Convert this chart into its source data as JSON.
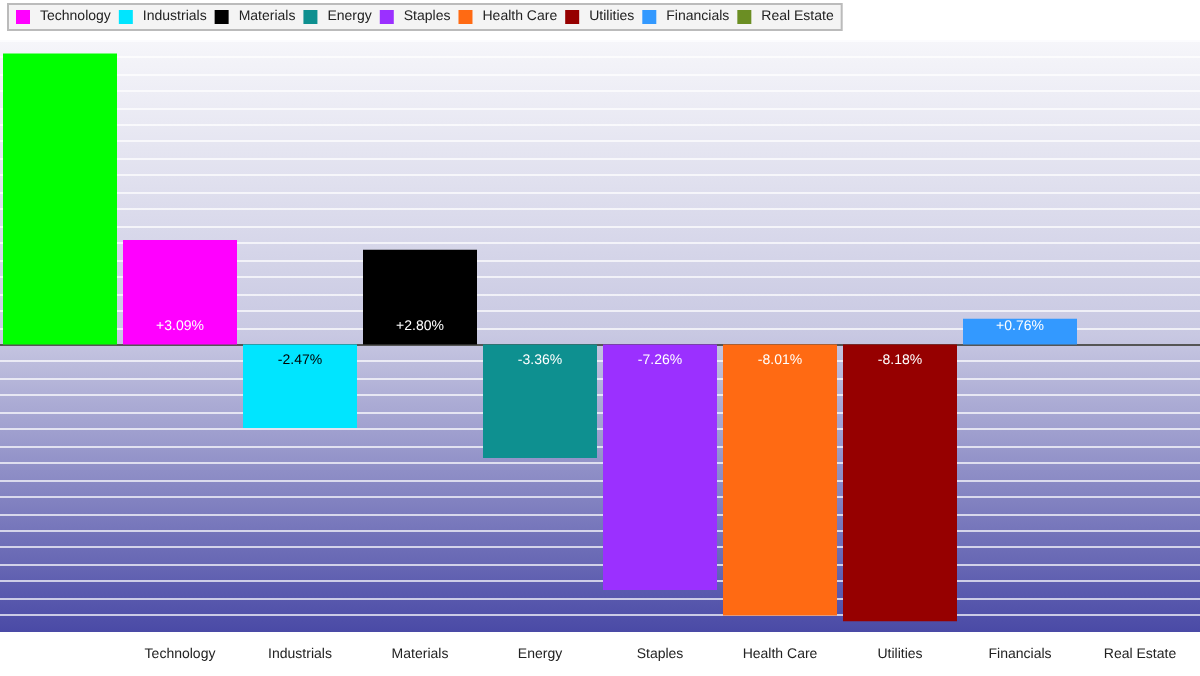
{
  "chart_data": {
    "type": "bar",
    "categories": [
      null,
      "Technology",
      "Industrials",
      "Materials",
      "Energy",
      "Staples",
      "Health Care",
      "Utilities",
      "Financials",
      "Real Estate"
    ],
    "stacked": true,
    "series": [
      {
        "color": "#00ff00",
        "values": [
          8.6,
          null,
          null,
          null,
          null,
          null,
          null,
          null,
          null,
          null
        ]
      },
      {
        "name": "Technology",
        "color": "#ff00ff",
        "values": [
          null,
          3.09,
          null,
          null,
          null,
          null,
          null,
          null,
          null,
          null
        ],
        "value_labels": [
          null,
          "+3.09%",
          null,
          null,
          null,
          null,
          null,
          null,
          null,
          null
        ]
      },
      {
        "name": "Industrials",
        "color": "#00e5ff",
        "values": [
          null,
          null,
          -2.47,
          null,
          null,
          null,
          null,
          null,
          null,
          null
        ],
        "value_labels": [
          null,
          null,
          "-2.47%",
          null,
          null,
          null,
          null,
          null,
          null,
          null
        ]
      },
      {
        "name": "Materials",
        "color": "#000000",
        "values": [
          null,
          null,
          null,
          2.8,
          null,
          null,
          null,
          null,
          null,
          null
        ],
        "value_labels": [
          null,
          null,
          null,
          "+2.80%",
          null,
          null,
          null,
          null,
          null,
          null
        ]
      },
      {
        "name": "Energy",
        "color": "#0e9090",
        "values": [
          null,
          null,
          null,
          null,
          -3.36,
          null,
          null,
          null,
          null,
          null
        ],
        "value_labels": [
          null,
          null,
          null,
          null,
          "-3.36%",
          null,
          null,
          null,
          null,
          null
        ]
      },
      {
        "name": "Staples",
        "color": "#9b30ff",
        "values": [
          null,
          null,
          null,
          null,
          null,
          -7.26,
          null,
          null,
          null,
          null
        ],
        "value_labels": [
          null,
          null,
          null,
          null,
          null,
          "-7.26%",
          null,
          null,
          null,
          null
        ]
      },
      {
        "name": "Health Care",
        "color": "#ff6a13",
        "values": [
          null,
          null,
          null,
          null,
          null,
          null,
          -8.01,
          null,
          null,
          null
        ],
        "value_labels": [
          null,
          null,
          null,
          null,
          null,
          null,
          "-8.01%",
          null,
          null,
          null
        ]
      },
      {
        "name": "Utilities",
        "color": "#960000",
        "values": [
          null,
          null,
          null,
          null,
          null,
          null,
          null,
          -8.18,
          null,
          null
        ],
        "value_labels": [
          null,
          null,
          null,
          null,
          null,
          null,
          null,
          "-8.18%",
          null,
          null
        ]
      },
      {
        "name": "Financials",
        "color": "#3399ff",
        "values": [
          null,
          null,
          null,
          null,
          null,
          null,
          null,
          null,
          0.76,
          null
        ],
        "value_labels": [
          null,
          null,
          null,
          null,
          null,
          null,
          null,
          null,
          "+0.76%",
          null
        ]
      },
      {
        "name": "Real Estate",
        "color": "#6b8e23",
        "values": [
          null,
          null,
          null,
          null,
          null,
          null,
          null,
          null,
          null,
          null
        ]
      }
    ],
    "grid": true,
    "legend": "top left"
  }
}
